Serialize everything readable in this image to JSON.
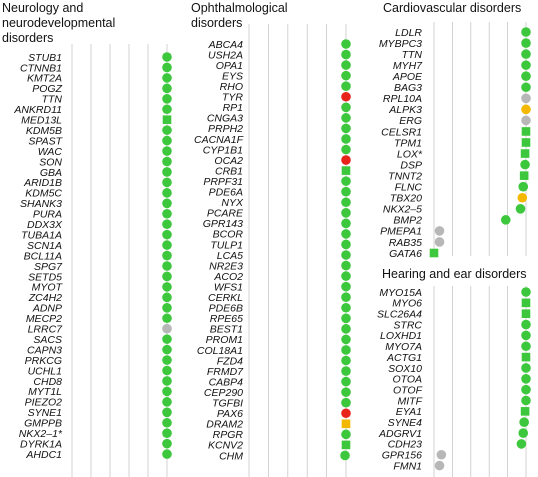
{
  "colors": {
    "green": "#3cc73c",
    "grey": "#b7b7b7",
    "red": "#e8231c",
    "orange": "#f5b800",
    "gridline": "#c8c8c8"
  },
  "chart_data": {
    "type": "scatter",
    "note_markers": "circle and square marker shapes as shown",
    "panels": [
      {
        "title_lines": [
          "Neurology and",
          "neurodevelopmental",
          "disorders"
        ],
        "genes": [
          {
            "label": "STUB1",
            "value": 6,
            "color": "green",
            "shape": "circle"
          },
          {
            "label": "CTNNB1",
            "value": 6,
            "color": "green",
            "shape": "circle"
          },
          {
            "label": "KMT2A",
            "value": 6,
            "color": "green",
            "shape": "circle"
          },
          {
            "label": "POGZ",
            "value": 6,
            "color": "green",
            "shape": "circle"
          },
          {
            "label": "TTN",
            "value": 6,
            "color": "green",
            "shape": "circle"
          },
          {
            "label": "ANKRD11",
            "value": 6,
            "color": "green",
            "shape": "circle"
          },
          {
            "label": "MED13L",
            "value": 6,
            "color": "green",
            "shape": "square"
          },
          {
            "label": "KDM5B",
            "value": 6,
            "color": "green",
            "shape": "circle"
          },
          {
            "label": "SPAST",
            "value": 6,
            "color": "green",
            "shape": "circle"
          },
          {
            "label": "WAC",
            "value": 6,
            "color": "green",
            "shape": "circle"
          },
          {
            "label": "SON",
            "value": 6,
            "color": "green",
            "shape": "circle"
          },
          {
            "label": "GBA",
            "value": 6,
            "color": "green",
            "shape": "circle"
          },
          {
            "label": "ARID1B",
            "value": 6,
            "color": "green",
            "shape": "circle"
          },
          {
            "label": "KDM5C",
            "value": 6,
            "color": "green",
            "shape": "circle"
          },
          {
            "label": "SHANK3",
            "value": 6,
            "color": "green",
            "shape": "circle"
          },
          {
            "label": "PURA",
            "value": 6,
            "color": "green",
            "shape": "circle"
          },
          {
            "label": "DDX3X",
            "value": 6,
            "color": "green",
            "shape": "circle"
          },
          {
            "label": "TUBA1A",
            "value": 6,
            "color": "green",
            "shape": "circle"
          },
          {
            "label": "SCN1A",
            "value": 6,
            "color": "green",
            "shape": "circle"
          },
          {
            "label": "BCL11A",
            "value": 6,
            "color": "green",
            "shape": "circle"
          },
          {
            "label": "SPG7",
            "value": 6,
            "color": "green",
            "shape": "circle"
          },
          {
            "label": "SETD5",
            "value": 6,
            "color": "green",
            "shape": "circle"
          },
          {
            "label": "MYOT",
            "value": 6,
            "color": "green",
            "shape": "circle"
          },
          {
            "label": "ZC4H2",
            "value": 6,
            "color": "green",
            "shape": "circle"
          },
          {
            "label": "ADNP",
            "value": 6,
            "color": "green",
            "shape": "circle"
          },
          {
            "label": "MECP2",
            "value": 6,
            "color": "green",
            "shape": "circle"
          },
          {
            "label": "LRRC7",
            "value": 6,
            "color": "grey",
            "shape": "circle"
          },
          {
            "label": "SACS",
            "value": 6,
            "color": "green",
            "shape": "circle"
          },
          {
            "label": "CAPN3",
            "value": 6,
            "color": "green",
            "shape": "circle"
          },
          {
            "label": "PRKCG",
            "value": 6,
            "color": "green",
            "shape": "circle"
          },
          {
            "label": "UCHL1",
            "value": 6,
            "color": "green",
            "shape": "circle"
          },
          {
            "label": "CHD8",
            "value": 6,
            "color": "green",
            "shape": "circle"
          },
          {
            "label": "MYT1L",
            "value": 6,
            "color": "green",
            "shape": "circle"
          },
          {
            "label": "PIEZO2",
            "value": 6,
            "color": "green",
            "shape": "circle"
          },
          {
            "label": "SYNE1",
            "value": 6,
            "color": "green",
            "shape": "circle"
          },
          {
            "label": "GMPPB",
            "value": 6,
            "color": "green",
            "shape": "circle"
          },
          {
            "label": "NKX2–1*",
            "value": 6,
            "color": "green",
            "shape": "circle"
          },
          {
            "label": "DYRK1A",
            "value": 6,
            "color": "green",
            "shape": "circle"
          },
          {
            "label": "AHDC1",
            "value": 6,
            "color": "green",
            "shape": "circle"
          }
        ]
      },
      {
        "title_lines": [
          "Ophthalmological",
          "disorders"
        ],
        "genes": [
          {
            "label": "ABCA4",
            "value": 6,
            "color": "green",
            "shape": "circle"
          },
          {
            "label": "USH2A",
            "value": 6,
            "color": "green",
            "shape": "circle"
          },
          {
            "label": "OPA1",
            "value": 6,
            "color": "green",
            "shape": "circle"
          },
          {
            "label": "EYS",
            "value": 6,
            "color": "green",
            "shape": "circle"
          },
          {
            "label": "RHO",
            "value": 6,
            "color": "green",
            "shape": "circle"
          },
          {
            "label": "TYR",
            "value": 6,
            "color": "red",
            "shape": "circle"
          },
          {
            "label": "RP1",
            "value": 6,
            "color": "green",
            "shape": "circle"
          },
          {
            "label": "CNGA3",
            "value": 6,
            "color": "green",
            "shape": "circle"
          },
          {
            "label": "PRPH2",
            "value": 6,
            "color": "green",
            "shape": "circle"
          },
          {
            "label": "CACNA1F",
            "value": 6,
            "color": "green",
            "shape": "circle"
          },
          {
            "label": "CYP1B1",
            "value": 6,
            "color": "green",
            "shape": "circle"
          },
          {
            "label": "OCA2",
            "value": 6,
            "color": "red",
            "shape": "circle"
          },
          {
            "label": "CRB1",
            "value": 6,
            "color": "green",
            "shape": "square"
          },
          {
            "label": "PRPF31",
            "value": 6,
            "color": "green",
            "shape": "circle"
          },
          {
            "label": "PDE6A",
            "value": 6,
            "color": "green",
            "shape": "circle"
          },
          {
            "label": "NYX",
            "value": 6,
            "color": "green",
            "shape": "circle"
          },
          {
            "label": "PCARE",
            "value": 6,
            "color": "green",
            "shape": "circle"
          },
          {
            "label": "GPR143",
            "value": 6,
            "color": "green",
            "shape": "circle"
          },
          {
            "label": "BCOR",
            "value": 6,
            "color": "green",
            "shape": "circle"
          },
          {
            "label": "TULP1",
            "value": 6,
            "color": "green",
            "shape": "circle"
          },
          {
            "label": "LCA5",
            "value": 6,
            "color": "green",
            "shape": "circle"
          },
          {
            "label": "NR2E3",
            "value": 6,
            "color": "green",
            "shape": "circle"
          },
          {
            "label": "ACO2",
            "value": 6,
            "color": "green",
            "shape": "circle"
          },
          {
            "label": "WFS1",
            "value": 6,
            "color": "green",
            "shape": "circle"
          },
          {
            "label": "CERKL",
            "value": 6,
            "color": "green",
            "shape": "circle"
          },
          {
            "label": "PDE6B",
            "value": 6,
            "color": "green",
            "shape": "circle"
          },
          {
            "label": "RPE65",
            "value": 6,
            "color": "green",
            "shape": "circle"
          },
          {
            "label": "BEST1",
            "value": 6,
            "color": "green",
            "shape": "circle"
          },
          {
            "label": "PROM1",
            "value": 6,
            "color": "green",
            "shape": "circle"
          },
          {
            "label": "COL18A1",
            "value": 6,
            "color": "green",
            "shape": "circle"
          },
          {
            "label": "FZD4",
            "value": 6,
            "color": "green",
            "shape": "circle"
          },
          {
            "label": "FRMD7",
            "value": 6,
            "color": "green",
            "shape": "circle"
          },
          {
            "label": "CABP4",
            "value": 6,
            "color": "green",
            "shape": "circle"
          },
          {
            "label": "CEP290",
            "value": 6,
            "color": "green",
            "shape": "circle"
          },
          {
            "label": "TGFBI",
            "value": 6,
            "color": "green",
            "shape": "circle"
          },
          {
            "label": "PAX6",
            "value": 6,
            "color": "red",
            "shape": "circle"
          },
          {
            "label": "DRAM2",
            "value": 6,
            "color": "orange",
            "shape": "square"
          },
          {
            "label": "RPGR",
            "value": 6,
            "color": "green",
            "shape": "circle"
          },
          {
            "label": "KCNV2",
            "value": 6,
            "color": "green",
            "shape": "square"
          },
          {
            "label": "CHM",
            "value": 5.95,
            "color": "green",
            "shape": "circle"
          }
        ]
      },
      {
        "title_lines": [
          "Cardiovascular disorders"
        ],
        "genes": [
          {
            "label": "LDLR",
            "value": 6,
            "color": "green",
            "shape": "circle"
          },
          {
            "label": "MYBPC3",
            "value": 6,
            "color": "green",
            "shape": "circle"
          },
          {
            "label": "TTN",
            "value": 6,
            "color": "green",
            "shape": "circle"
          },
          {
            "label": "MYH7",
            "value": 6,
            "color": "green",
            "shape": "circle"
          },
          {
            "label": "APOE",
            "value": 6,
            "color": "green",
            "shape": "circle"
          },
          {
            "label": "BAG3",
            "value": 6,
            "color": "green",
            "shape": "circle"
          },
          {
            "label": "RPL10A",
            "value": 6,
            "color": "grey",
            "shape": "circle"
          },
          {
            "label": "ALPK3",
            "value": 6,
            "color": "orange",
            "shape": "circle"
          },
          {
            "label": "ERG",
            "value": 6,
            "color": "grey",
            "shape": "circle"
          },
          {
            "label": "CELSR1",
            "value": 6,
            "color": "green",
            "shape": "square"
          },
          {
            "label": "TPM1",
            "value": 6,
            "color": "green",
            "shape": "square"
          },
          {
            "label": "LOX*",
            "value": 5.95,
            "color": "green",
            "shape": "square"
          },
          {
            "label": "DSP",
            "value": 5.95,
            "color": "green",
            "shape": "circle"
          },
          {
            "label": "TNNT2",
            "value": 5.9,
            "color": "green",
            "shape": "square"
          },
          {
            "label": "FLNC",
            "value": 5.85,
            "color": "green",
            "shape": "circle"
          },
          {
            "label": "TBX20",
            "value": 5.8,
            "color": "orange",
            "shape": "circle"
          },
          {
            "label": "NKX2–5",
            "value": 5.7,
            "color": "green",
            "shape": "circle"
          },
          {
            "label": "BMP2",
            "value": 4.9,
            "color": "green",
            "shape": "circle"
          },
          {
            "label": "PMEPA1",
            "value": 1.3,
            "color": "grey",
            "shape": "circle"
          },
          {
            "label": "RAB35",
            "value": 1.3,
            "color": "grey",
            "shape": "circle"
          },
          {
            "label": "GATA6",
            "value": 1.0,
            "color": "green",
            "shape": "square"
          }
        ]
      },
      {
        "title_lines": [
          "Hearing and ear disorders"
        ],
        "genes": [
          {
            "label": "MYO15A",
            "value": 6,
            "color": "green",
            "shape": "circle"
          },
          {
            "label": "MYO6",
            "value": 6,
            "color": "green",
            "shape": "square"
          },
          {
            "label": "SLC26A4",
            "value": 6,
            "color": "green",
            "shape": "square"
          },
          {
            "label": "STRC",
            "value": 6,
            "color": "green",
            "shape": "circle"
          },
          {
            "label": "LOXHD1",
            "value": 6,
            "color": "green",
            "shape": "circle"
          },
          {
            "label": "MYO7A",
            "value": 6,
            "color": "green",
            "shape": "circle"
          },
          {
            "label": "ACTG1",
            "value": 6,
            "color": "green",
            "shape": "square"
          },
          {
            "label": "SOX10",
            "value": 6,
            "color": "green",
            "shape": "circle"
          },
          {
            "label": "OTOA",
            "value": 6,
            "color": "green",
            "shape": "circle"
          },
          {
            "label": "OTOF",
            "value": 6,
            "color": "green",
            "shape": "circle"
          },
          {
            "label": "MITF",
            "value": 6,
            "color": "green",
            "shape": "circle"
          },
          {
            "label": "EYA1",
            "value": 5.95,
            "color": "green",
            "shape": "square"
          },
          {
            "label": "SYNE4",
            "value": 5.9,
            "color": "green",
            "shape": "circle"
          },
          {
            "label": "ADGRV1",
            "value": 5.85,
            "color": "green",
            "shape": "circle"
          },
          {
            "label": "CDH23",
            "value": 5.75,
            "color": "green",
            "shape": "circle"
          },
          {
            "label": "GPR156",
            "value": 1.4,
            "color": "grey",
            "shape": "circle"
          },
          {
            "label": "FMN1",
            "value": 1.3,
            "color": "grey",
            "shape": "circle"
          }
        ]
      }
    ]
  }
}
